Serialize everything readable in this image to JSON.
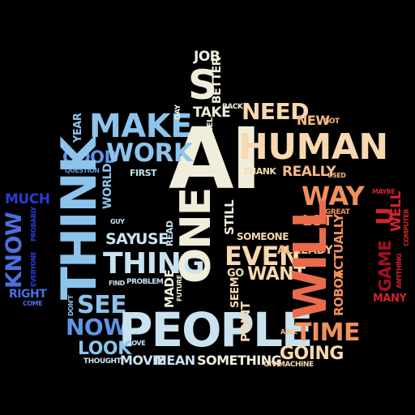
{
  "palette": {
    "background": "#000000",
    "cream": "#f0eedb",
    "pale_blue": "#c9e2ef",
    "sky_blue": "#8cc4ec",
    "mid_blue": "#5f96e6",
    "blue": "#4b6fe0",
    "deep_blue": "#2a3bd6",
    "peach": "#f8d8b0",
    "light_orange": "#f6b985",
    "orange": "#f0905e",
    "coral": "#ea6b4c",
    "red": "#d0232c",
    "dark_red": "#a3101f"
  },
  "words": {
    "job": "JOB",
    "s": "S",
    "better": "BETTER",
    "take": "TAKE",
    "back": "BACK",
    "day": "DAY",
    "feel": "FEEL",
    "need": "NEED",
    "new": "NEW",
    "got": "GOT",
    "make": "MAKE",
    "year": "YEAR",
    "ai": "AI",
    "human": "HUMAN",
    "good": "GOOD",
    "work": "WORK",
    "question": "QUESTION",
    "first": "FIRST",
    "thank": "THANK",
    "really": "REALLY",
    "used": "USED",
    "think": "THINK",
    "world": "WORLD",
    "way": "WAY",
    "maybe": "MAYBE",
    "u": "U",
    "much": "MUCH",
    "great": "GREAT",
    "well": "WELL",
    "lot": "LOT",
    "computer": "COMPUTER",
    "probably": "PROBABLY",
    "guy": "GUY",
    "one": "ONE",
    "still": "STILL",
    "say": "SAY",
    "use": "USE",
    "read": "READ",
    "someone": "SOMEONE",
    "know": "KNOW",
    "everyone": "EVERYONE",
    "thing": "THING",
    "even": "EVEN",
    "already": "ALREADY",
    "will": "WILL",
    "go": "GO",
    "want": "WANT",
    "actually": "ACTUALLY",
    "robot": "ROBOT",
    "game": "GAME",
    "anything": "ANYTHING",
    "find": "FIND",
    "problem": "PROBLEM",
    "made": "MADE",
    "future": "FUTURE",
    "right": "RIGHT",
    "come": "COME",
    "seem": "SEEM",
    "many": "MANY",
    "see": "SEE",
    "dont": "DON'T",
    "now": "NOW",
    "people": "PEOPLE",
    "point": "POINT",
    "able": "ABLE",
    "time": "TIME",
    "love": "LOVE",
    "look": "LOOK",
    "going": "GOING",
    "thought": "THOUGHT",
    "movie": "MOVIE",
    "mean": "MEAN",
    "something": "SOMETHING",
    "give": "GIVE",
    "machine": "MACHINE"
  }
}
